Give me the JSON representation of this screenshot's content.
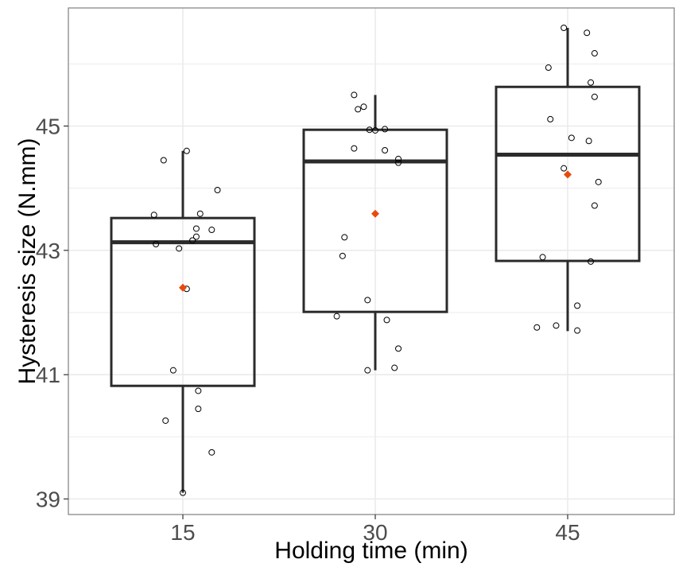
{
  "chart_data": {
    "type": "boxplot",
    "xlabel": "Holding time (min)",
    "ylabel": "Hysteresis size (N.mm)",
    "categories": [
      "15",
      "30",
      "45"
    ],
    "y_ticks": [
      39,
      41,
      43,
      45
    ],
    "ylim": [
      38.75,
      46.9
    ],
    "grid": true,
    "boxes": [
      {
        "category": "15",
        "whisker_low": 39.1,
        "q1": 40.82,
        "median": 43.13,
        "q3": 43.52,
        "whisker_high": 44.6,
        "mean": 42.4
      },
      {
        "category": "30",
        "whisker_low": 41.07,
        "q1": 42.01,
        "median": 44.43,
        "q3": 44.94,
        "whisker_high": 45.5,
        "mean": 43.59
      },
      {
        "category": "45",
        "whisker_low": 41.7,
        "q1": 42.83,
        "median": 44.54,
        "q3": 45.63,
        "whisker_high": 46.58,
        "mean": 44.22
      }
    ],
    "points": [
      {
        "category": "15",
        "jitter": -0.1,
        "y": 44.45
      },
      {
        "category": "15",
        "jitter": 0.02,
        "y": 44.6
      },
      {
        "category": "15",
        "jitter": 0.18,
        "y": 43.97
      },
      {
        "category": "15",
        "jitter": -0.15,
        "y": 43.57
      },
      {
        "category": "15",
        "jitter": 0.09,
        "y": 43.59
      },
      {
        "category": "15",
        "jitter": 0.07,
        "y": 43.35
      },
      {
        "category": "15",
        "jitter": 0.15,
        "y": 43.33
      },
      {
        "category": "15",
        "jitter": 0.07,
        "y": 43.22
      },
      {
        "category": "15",
        "jitter": 0.05,
        "y": 43.16
      },
      {
        "category": "15",
        "jitter": -0.14,
        "y": 43.1
      },
      {
        "category": "15",
        "jitter": -0.02,
        "y": 43.03
      },
      {
        "category": "15",
        "jitter": 0.02,
        "y": 42.38
      },
      {
        "category": "15",
        "jitter": -0.05,
        "y": 41.07
      },
      {
        "category": "15",
        "jitter": 0.08,
        "y": 40.74
      },
      {
        "category": "15",
        "jitter": 0.08,
        "y": 40.45
      },
      {
        "category": "15",
        "jitter": -0.09,
        "y": 40.26
      },
      {
        "category": "15",
        "jitter": 0.15,
        "y": 39.75
      },
      {
        "category": "15",
        "jitter": 0.0,
        "y": 39.1
      },
      {
        "category": "30",
        "jitter": -0.11,
        "y": 45.5
      },
      {
        "category": "30",
        "jitter": -0.06,
        "y": 45.31
      },
      {
        "category": "30",
        "jitter": -0.09,
        "y": 45.27
      },
      {
        "category": "30",
        "jitter": -0.03,
        "y": 44.94
      },
      {
        "category": "30",
        "jitter": 0.0,
        "y": 44.93
      },
      {
        "category": "30",
        "jitter": 0.05,
        "y": 44.95
      },
      {
        "category": "30",
        "jitter": -0.11,
        "y": 44.64
      },
      {
        "category": "30",
        "jitter": 0.05,
        "y": 44.61
      },
      {
        "category": "30",
        "jitter": 0.12,
        "y": 44.47
      },
      {
        "category": "30",
        "jitter": 0.12,
        "y": 44.41
      },
      {
        "category": "30",
        "jitter": -0.16,
        "y": 43.21
      },
      {
        "category": "30",
        "jitter": -0.17,
        "y": 42.91
      },
      {
        "category": "30",
        "jitter": -0.04,
        "y": 42.2
      },
      {
        "category": "30",
        "jitter": -0.2,
        "y": 41.94
      },
      {
        "category": "30",
        "jitter": 0.06,
        "y": 41.88
      },
      {
        "category": "30",
        "jitter": 0.12,
        "y": 41.42
      },
      {
        "category": "30",
        "jitter": 0.1,
        "y": 41.11
      },
      {
        "category": "30",
        "jitter": -0.04,
        "y": 41.07
      },
      {
        "category": "45",
        "jitter": -0.02,
        "y": 46.58
      },
      {
        "category": "45",
        "jitter": 0.1,
        "y": 46.5
      },
      {
        "category": "45",
        "jitter": 0.14,
        "y": 46.17
      },
      {
        "category": "45",
        "jitter": -0.1,
        "y": 45.94
      },
      {
        "category": "45",
        "jitter": 0.12,
        "y": 45.7
      },
      {
        "category": "45",
        "jitter": 0.14,
        "y": 45.47
      },
      {
        "category": "45",
        "jitter": -0.09,
        "y": 45.11
      },
      {
        "category": "45",
        "jitter": 0.02,
        "y": 44.81
      },
      {
        "category": "45",
        "jitter": 0.11,
        "y": 44.76
      },
      {
        "category": "45",
        "jitter": -0.02,
        "y": 44.32
      },
      {
        "category": "45",
        "jitter": 0.16,
        "y": 44.1
      },
      {
        "category": "45",
        "jitter": 0.14,
        "y": 43.72
      },
      {
        "category": "45",
        "jitter": -0.13,
        "y": 42.89
      },
      {
        "category": "45",
        "jitter": 0.12,
        "y": 42.82
      },
      {
        "category": "45",
        "jitter": 0.05,
        "y": 42.11
      },
      {
        "category": "45",
        "jitter": -0.16,
        "y": 41.76
      },
      {
        "category": "45",
        "jitter": -0.06,
        "y": 41.79
      },
      {
        "category": "45",
        "jitter": 0.05,
        "y": 41.71
      }
    ],
    "colors": {
      "box": "#2b2b2b",
      "mean_marker": "#e84a0e",
      "point": "#000000",
      "grid": "#ebebeb",
      "panel_border": "#7f7f7f"
    }
  }
}
